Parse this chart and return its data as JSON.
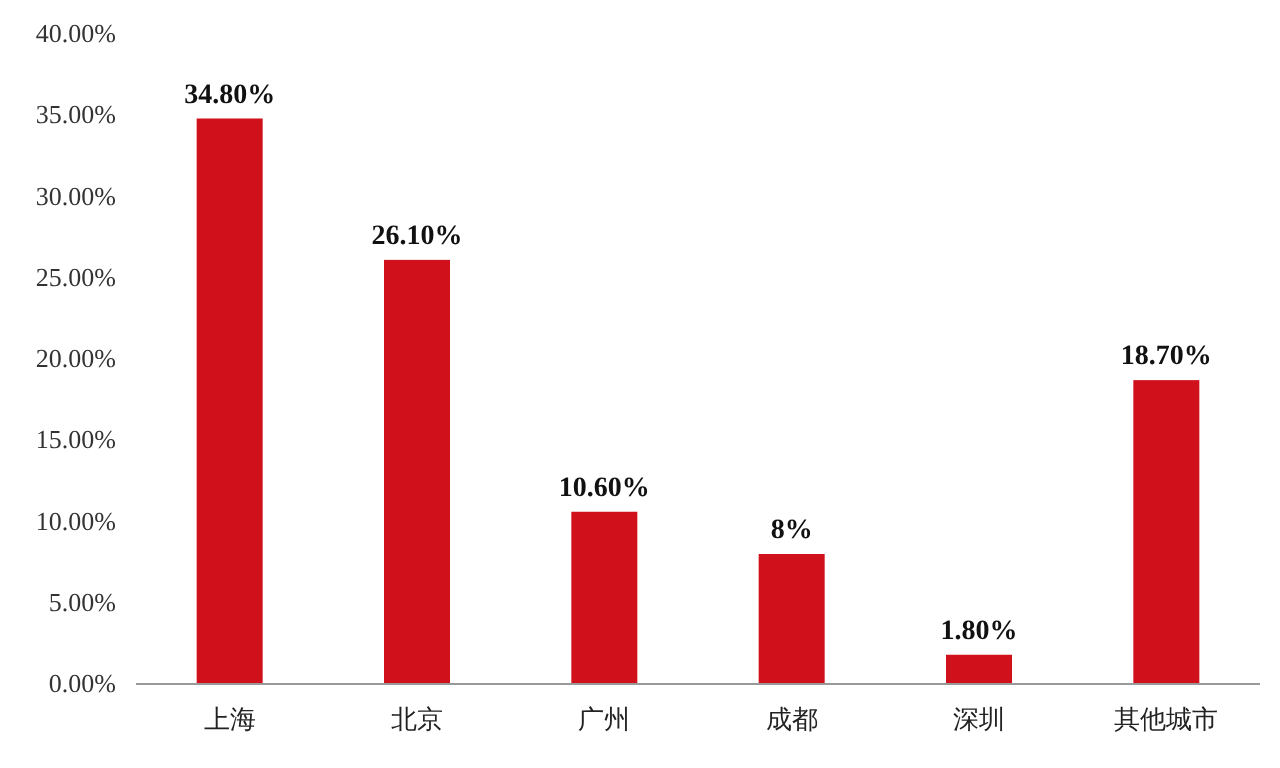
{
  "chart_data": {
    "type": "bar",
    "categories": [
      "上海",
      "北京",
      "广州",
      "成都",
      "深圳",
      "其他城市"
    ],
    "values": [
      34.8,
      26.1,
      10.6,
      8,
      1.8,
      18.7
    ],
    "value_labels": [
      "34.80%",
      "26.10%",
      "10.60%",
      "8%",
      "1.80%",
      "18.70%"
    ],
    "color": "#d0101b",
    "ylim": [
      0,
      40
    ],
    "yticks": [
      {
        "value": 0,
        "label": "0.00%"
      },
      {
        "value": 5,
        "label": "5.00%"
      },
      {
        "value": 10,
        "label": "10.00%"
      },
      {
        "value": 15,
        "label": "15.00%"
      },
      {
        "value": 20,
        "label": "20.00%"
      },
      {
        "value": 25,
        "label": "25.00%"
      },
      {
        "value": 30,
        "label": "30.00%"
      },
      {
        "value": 35,
        "label": "35.00%"
      },
      {
        "value": 40,
        "label": "40.00%"
      }
    ],
    "grid": false
  }
}
